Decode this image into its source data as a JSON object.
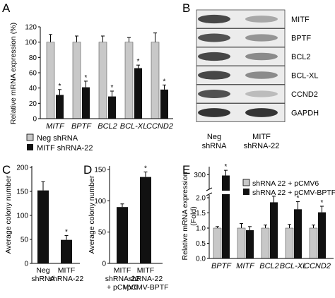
{
  "colors": {
    "gray": "#c8c8c8",
    "black": "#111111",
    "blot_bg": "#ececec",
    "band": "#2a2a2a"
  },
  "chart_data": [
    {
      "panel": "A",
      "type": "bar",
      "ylabel": "Relative mRNA expression (%)",
      "ylim": [
        0,
        120
      ],
      "yticks": [
        0,
        20,
        40,
        60,
        80,
        100,
        120
      ],
      "categories": [
        "MITF",
        "BPTF",
        "BCL2",
        "BCL-XL",
        "CCND2"
      ],
      "series": [
        {
          "name": "Neg shRNA",
          "color": "#c8c8c8",
          "values": [
            100,
            100,
            100,
            100,
            100
          ],
          "errors": [
            10,
            8,
            8,
            6,
            12
          ]
        },
        {
          "name": "MITF shRNA-22",
          "color": "#111111",
          "values": [
            31,
            41,
            29,
            66,
            38
          ],
          "errors": [
            7,
            8,
            7,
            4,
            6
          ]
        }
      ],
      "significance": [
        [
          1,
          0
        ],
        [
          1,
          1
        ],
        [
          1,
          2
        ],
        [
          1,
          3
        ],
        [
          1,
          4
        ]
      ],
      "legend": "bottom-left",
      "star": "*"
    },
    {
      "panel": "C",
      "type": "bar",
      "ylabel": "Average colony number",
      "ylim": [
        0,
        200
      ],
      "yticks": [
        0,
        50,
        100,
        150,
        200
      ],
      "categories": [
        "Neg\nshRNA",
        "MITF\nshRNA-22"
      ],
      "values": [
        152,
        49
      ],
      "errors": [
        18,
        9
      ],
      "color": "#111111",
      "significance": [
        1
      ],
      "star": "*"
    },
    {
      "panel": "D",
      "type": "bar",
      "ylabel": "Average colony number",
      "ylim": [
        0,
        150
      ],
      "yticks": [
        0,
        50,
        100,
        150
      ],
      "categories": [
        "MITF\nshRNA-22\n+ pCMV6",
        "MITF\nshRNA-22\n+pCMV-BPTF"
      ],
      "values": [
        90,
        138
      ],
      "errors": [
        5,
        8
      ],
      "color": "#111111",
      "significance": [
        1
      ],
      "star": "*"
    },
    {
      "panel": "E",
      "type": "bar",
      "ylabel": "Relative mRNA expression\n(Fold)",
      "axis_break": true,
      "ylim_lower": [
        0,
        2.0
      ],
      "yticks_lower": [
        0,
        0.5,
        1.0,
        1.5,
        2.0
      ],
      "ylim_upper": [
        250,
        320
      ],
      "yticks_upper": [
        300
      ],
      "categories": [
        "BPTF",
        "MITF",
        "BCL2",
        "BCL-XL",
        "CCND2"
      ],
      "series": [
        {
          "name": "shRNA 22 + pCMV6",
          "color": "#c8c8c8",
          "values": [
            1.0,
            1.0,
            1.0,
            1.0,
            1.0
          ],
          "errors": [
            0.05,
            0.15,
            0.1,
            0.12,
            0.1
          ]
        },
        {
          "name": "shRNA 22 + pCMV-BPTF",
          "color": "#111111",
          "values": [
            298,
            0.93,
            1.85,
            1.62,
            1.52
          ],
          "errors": [
            12,
            0.12,
            0.2,
            0.25,
            0.2
          ]
        }
      ],
      "significance": [
        [
          1,
          0
        ],
        [
          1,
          2
        ],
        [
          1,
          3
        ],
        [
          1,
          4
        ]
      ],
      "legend": "top-right",
      "star": "*"
    }
  ],
  "blot": {
    "panel": "B",
    "rows": [
      {
        "label": "MITF",
        "intensity": [
          0.85,
          0.35
        ]
      },
      {
        "label": "BPTF",
        "intensity": [
          0.8,
          0.45
        ]
      },
      {
        "label": "BCL2",
        "intensity": [
          0.85,
          0.5
        ]
      },
      {
        "label": "BCL-XL",
        "intensity": [
          0.85,
          0.5
        ]
      },
      {
        "label": "CCND2",
        "intensity": [
          0.8,
          0.25
        ]
      },
      {
        "label": "GAPDH",
        "intensity": [
          0.95,
          0.95
        ]
      }
    ],
    "lanes": [
      {
        "line1": "Neg",
        "line2": "shRNA"
      },
      {
        "line1": "MITF",
        "line2": "shRNA-22"
      }
    ]
  },
  "panel_labels": {
    "A": "A",
    "B": "B",
    "C": "C",
    "D": "D",
    "E": "E"
  }
}
